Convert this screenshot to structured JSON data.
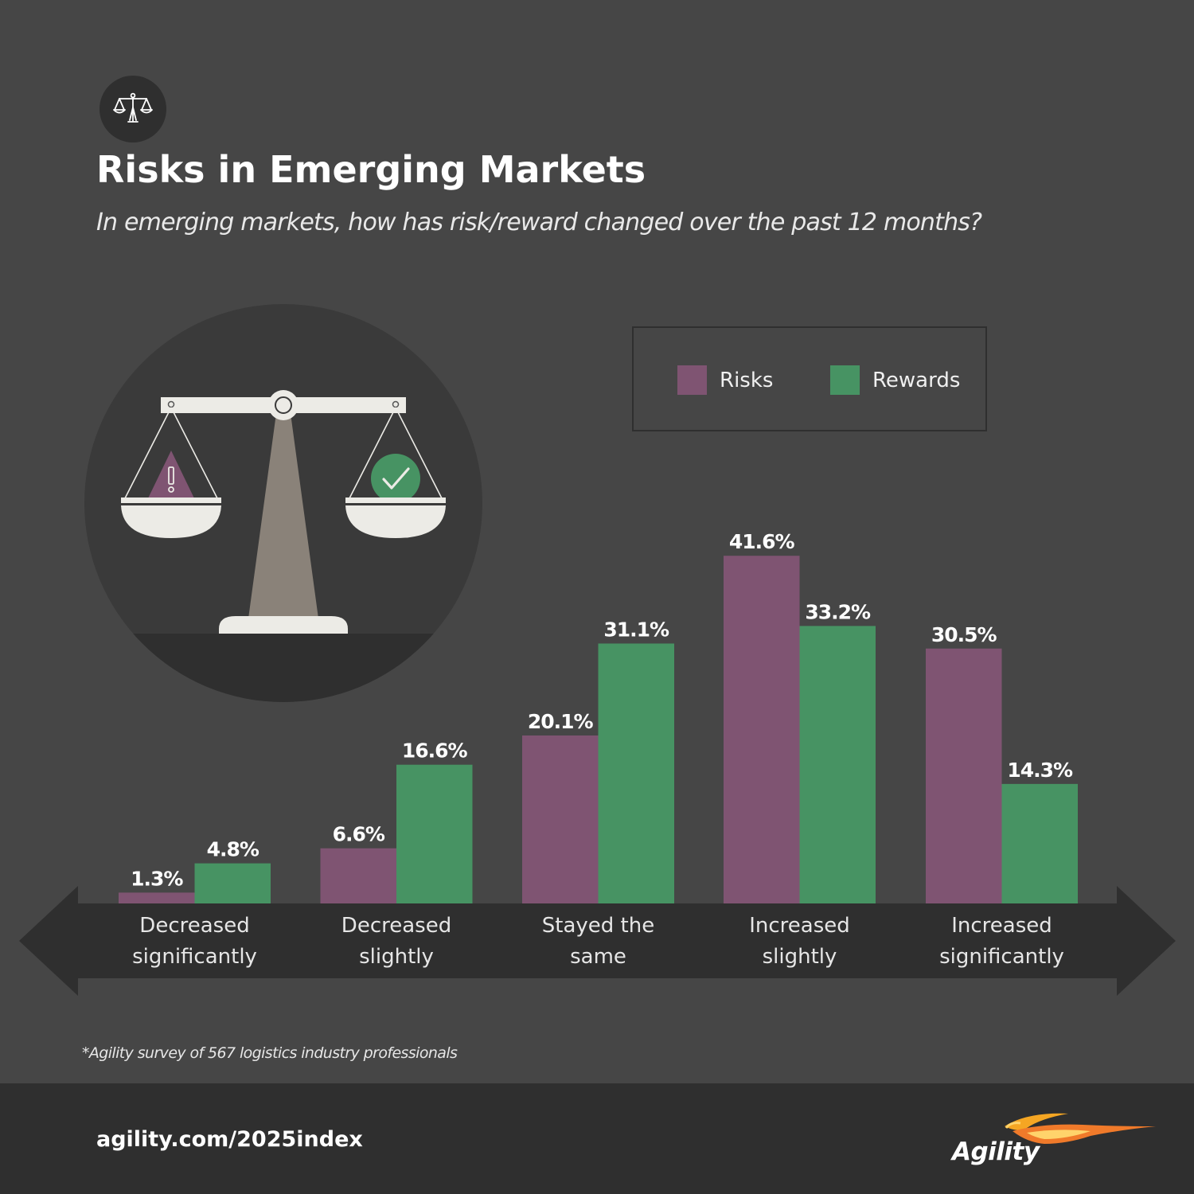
{
  "header": {
    "icon": "balance-scale-icon",
    "title": "Risks in Emerging Markets",
    "subtitle": "In emerging markets, how has risk/reward changed over the past 12 months?"
  },
  "illustration": {
    "icon": "balance-scale-illustration",
    "left_pan_icon": "warning-triangle-icon",
    "right_pan_icon": "checkmark-circle-icon"
  },
  "legend": {
    "items": [
      {
        "label": "Risks",
        "color": "#7f5472"
      },
      {
        "label": "Rewards",
        "color": "#479363"
      }
    ]
  },
  "chart_data": {
    "type": "bar",
    "categories": [
      [
        "Decreased",
        "significantly"
      ],
      [
        "Decreased",
        "slightly"
      ],
      [
        "Stayed the",
        "same"
      ],
      [
        "Increased",
        "slightly"
      ],
      [
        "Increased",
        "significantly"
      ]
    ],
    "series": [
      {
        "name": "Risks",
        "color": "#7f5472",
        "values": [
          1.3,
          6.6,
          20.1,
          41.6,
          30.5
        ]
      },
      {
        "name": "Rewards",
        "color": "#479363",
        "values": [
          4.8,
          16.6,
          31.1,
          33.2,
          14.3
        ]
      }
    ],
    "value_suffix": "%",
    "ylim": [
      0,
      45
    ],
    "grid": false,
    "legend_position": "top-right",
    "xaxis_style": "double-arrow"
  },
  "footnote": "*Agility survey of 567 logistics industry professionals",
  "footer": {
    "url": "agility.com/2025index",
    "logo_text": "Agility",
    "logo_icon": "agility-bird-logo"
  }
}
